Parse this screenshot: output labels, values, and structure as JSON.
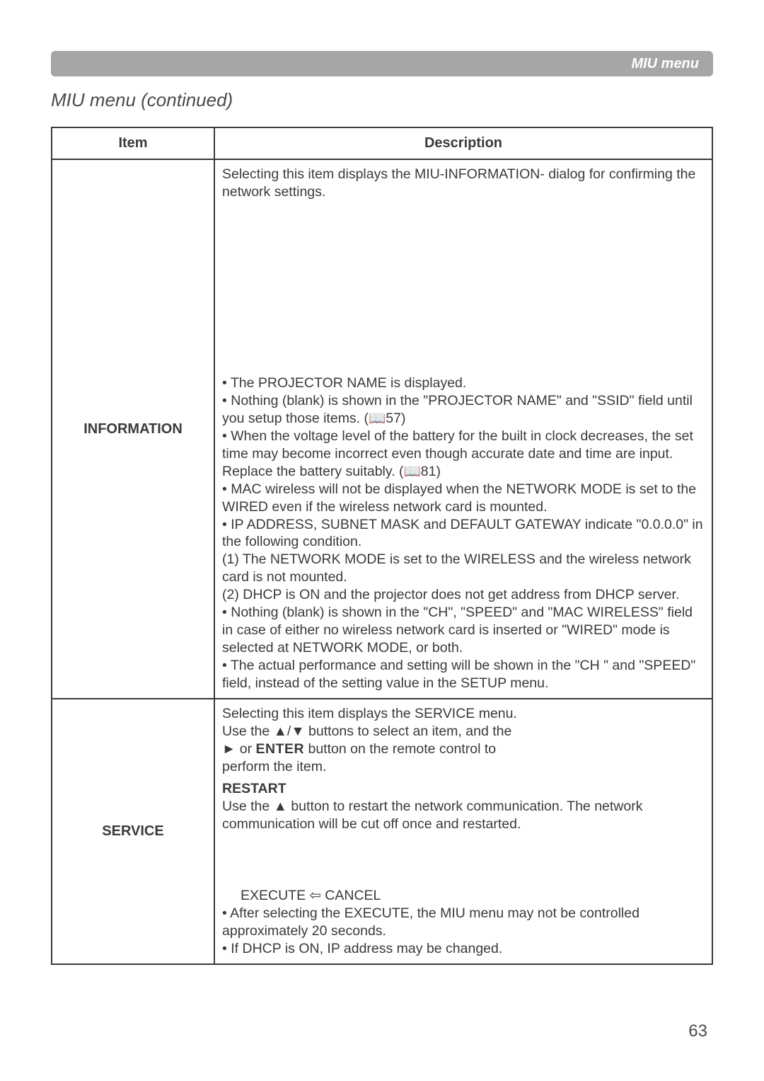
{
  "topbar": {
    "label": "MIU menu"
  },
  "section_title": "MIU menu (continued)",
  "table": {
    "headers": {
      "item": "Item",
      "description": "Description"
    },
    "rows": [
      {
        "item_label": "INFORMATION",
        "intro": "Selecting this item displays the MIU-INFORMATION- dialog for confirming the network settings.",
        "bullets": [
          "• The PROJECTOR NAME is displayed.",
          "• Nothing (blank) is shown in the \"PROJECTOR NAME\" and \"SSID\" field until you setup those items. (📖57)",
          "• When the voltage level of the battery for the built in clock decreases, the set time may become incorrect even though accurate date and time are input. Replace the battery suitably. (📖81)",
          "• MAC wireless will not be displayed when the NETWORK MODE is set to the WIRED even if the wireless network card is mounted.",
          "• IP ADDRESS, SUBNET MASK and DEFAULT GATEWAY indicate \"0.0.0.0\" in the following condition.",
          "(1) The NETWORK MODE is set to the WIRELESS and the wireless network card is not mounted.",
          "(2) DHCP is ON and the projector does not get address from DHCP server.",
          "• Nothing (blank) is shown in the \"CH\", \"SPEED\" and \"MAC WIRELESS\" field in case of either no wireless network card is inserted or \"WIRED\" mode is selected at NETWORK MODE, or both.",
          "• The actual performance and setting will be shown in the \"CH \" and \"SPEED\" field, instead of the setting value in the SETUP menu."
        ]
      },
      {
        "item_label": "SERVICE",
        "svc_intro1": "Selecting this item displays the SERVICE menu.",
        "svc_intro2a": "Use the ▲/▼ buttons to select an item, and the",
        "svc_intro2b_prefix": "► or ",
        "svc_intro2b_enter": "ENTER",
        "svc_intro2b_suffix": " button on the remote control to",
        "svc_intro2c": "perform the item.",
        "restart_head": "  RESTART",
        "restart_body": "Use the ▲ button to restart the network communication. The network communication will be cut off once and restarted.",
        "exec_line": "EXECUTE ⇦ CANCEL",
        "after_exec": "• After selecting the EXECUTE, the MIU menu may not be controlled approximately 20 seconds.",
        "dhcp_note": "• If DHCP is ON, IP address may be changed."
      }
    ]
  },
  "page_number": "63"
}
